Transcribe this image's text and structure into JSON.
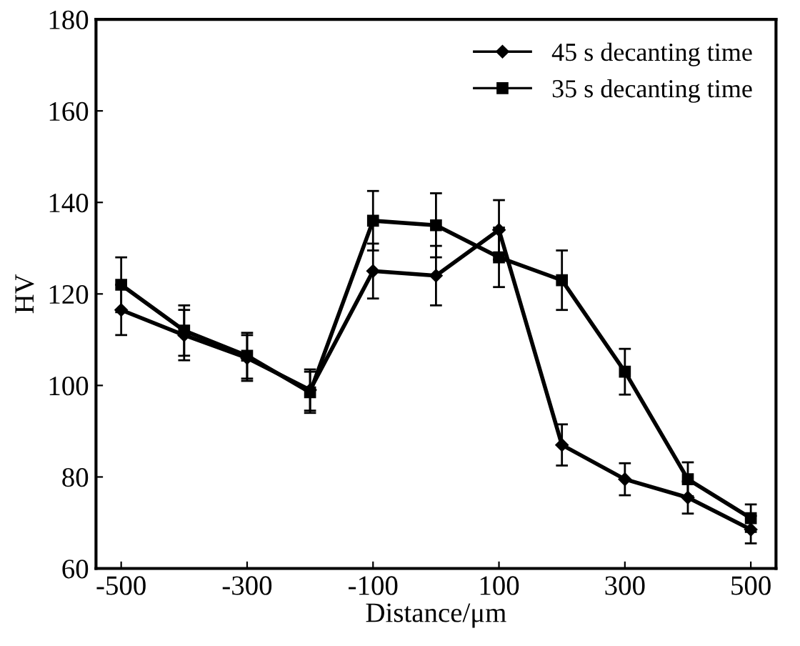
{
  "chart_data": {
    "type": "line",
    "xlabel": "Distance/μm",
    "ylabel": "HV",
    "x": [
      -500,
      -400,
      -300,
      -200,
      -100,
      0,
      100,
      200,
      300,
      400,
      500
    ],
    "series": [
      {
        "name": "45 s decanting time",
        "color": "#000000",
        "marker": "diamond",
        "values": [
          116.5,
          111,
          106,
          99,
          125,
          124,
          134,
          87,
          79.5,
          75.5,
          68.5
        ],
        "errors": [
          5.5,
          5.5,
          5,
          4.5,
          6,
          6.5,
          6.5,
          4.5,
          3.5,
          3.5,
          3
        ]
      },
      {
        "name": "35 s decanting time",
        "color": "#000000",
        "marker": "square",
        "values": [
          122,
          112,
          106.5,
          98.5,
          136,
          135,
          128,
          123,
          103,
          79.5,
          71
        ],
        "errors": [
          6,
          5.5,
          5,
          4.5,
          6.5,
          7,
          6.5,
          6.5,
          5,
          3.7,
          3
        ]
      }
    ],
    "xlim": [
      -540,
      540
    ],
    "xticks": [
      -500,
      -300,
      -100,
      100,
      300,
      500
    ],
    "ylim": [
      60,
      180
    ],
    "yticks": [
      60,
      80,
      100,
      120,
      140,
      160,
      180
    ],
    "legend": "top right",
    "grid": false,
    "line_style": "solid"
  }
}
